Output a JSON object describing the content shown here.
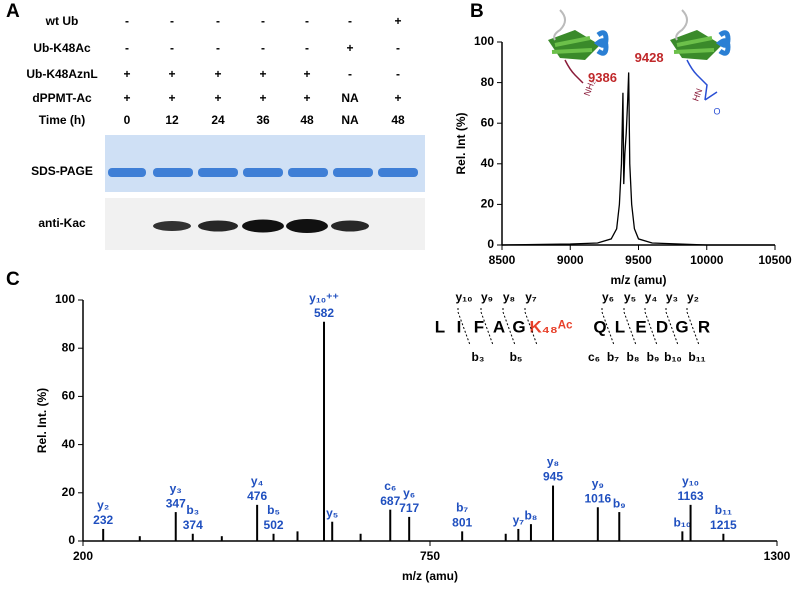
{
  "gel": {
    "panel": "A",
    "rows": [
      {
        "label": "wt Ub",
        "cells": [
          "-",
          "-",
          "-",
          "-",
          "-",
          "-",
          "+"
        ]
      },
      {
        "label": "Ub-K48Ac",
        "cells": [
          "-",
          "-",
          "-",
          "-",
          "-",
          "+",
          "-"
        ]
      },
      {
        "label": "Ub-K48AznL",
        "cells": [
          "+",
          "+",
          "+",
          "+",
          "+",
          "-",
          "-"
        ]
      },
      {
        "label": "dPPMT-Ac",
        "cells": [
          "+",
          "+",
          "+",
          "+",
          "+",
          "NA",
          "+"
        ]
      },
      {
        "label": "Time (h)",
        "cells": [
          0,
          12,
          24,
          36,
          48,
          "NA",
          48
        ]
      }
    ],
    "blots": [
      "SDS-PAGE",
      "anti-Kac"
    ]
  },
  "chart_data": [
    {
      "type": "line",
      "panel": "B",
      "xlabel": "m/z (amu)",
      "ylabel": "Rel. Int (%)",
      "x": [
        8500,
        8800,
        9000,
        9200,
        9300,
        9340,
        9360,
        9375,
        9386,
        9392,
        9400,
        9410,
        9420,
        9428,
        9436,
        9450,
        9470,
        9500,
        9600,
        9800,
        10000,
        10500
      ],
      "values": [
        0,
        0.3,
        0.5,
        1,
        3,
        8,
        20,
        40,
        75,
        30,
        45,
        55,
        70,
        85,
        40,
        20,
        8,
        3,
        1,
        0.5,
        0,
        0
      ],
      "color": "#000000",
      "xlim": [
        8500,
        10500
      ],
      "xticks": [
        8500,
        9000,
        9500,
        10000,
        10500
      ],
      "ylim": [
        0,
        100
      ],
      "yticks": [
        0,
        20,
        40,
        60,
        80,
        100
      ],
      "annotations": [
        9386,
        9428
      ],
      "annotation_color": "#c0282a",
      "cartoon_labels": [
        "NH₂",
        "HN",
        "O"
      ]
    },
    {
      "type": "stem",
      "panel": "C",
      "xlabel": "m/z (amu)",
      "ylabel": "Rel. Int. (%)",
      "x": [
        232,
        290,
        347,
        374,
        420,
        476,
        502,
        540,
        582,
        595,
        640,
        687,
        717,
        801,
        870,
        890,
        910,
        945,
        1016,
        1050,
        1150,
        1163,
        1215
      ],
      "values": [
        5,
        2,
        12,
        3,
        2,
        15,
        3,
        4,
        91,
        8,
        3,
        13,
        10,
        4,
        3,
        5,
        7,
        23,
        14,
        12,
        4,
        15,
        3
      ],
      "ion_labels": [
        "y₂",
        null,
        "y₃",
        "b₃",
        null,
        "y₄",
        "b₅",
        null,
        "y₁₀⁺⁺",
        "y₅",
        null,
        "c₆",
        "y₆",
        "b₇",
        null,
        "y₇",
        "b₈",
        "y₈",
        "y₉",
        "b₉",
        "b₁₀",
        "y₁₀",
        "b₁₁"
      ],
      "x_labels": [
        232,
        null,
        347,
        374,
        null,
        476,
        502,
        null,
        582,
        null,
        null,
        687,
        717,
        801,
        null,
        null,
        null,
        945,
        1016,
        null,
        null,
        1163,
        1215
      ],
      "color": "#000000",
      "label_color": "#1f4fbf",
      "xlim": [
        200,
        1300
      ],
      "xticks": [
        200,
        750,
        1300
      ],
      "ylim": [
        0,
        100
      ],
      "yticks": [
        0,
        20,
        40,
        60,
        80,
        100
      ],
      "sequence": [
        "L",
        "I",
        "F",
        "A",
        "G",
        "K₄₈ᴬᶜ",
        "Q",
        "L",
        "E",
        "D",
        "G",
        "R"
      ],
      "fragments_top": [
        "y₁₀",
        "y₉",
        "y₈",
        "y₇",
        "y₆",
        "y₅",
        "y₄",
        "y₃",
        "y₂"
      ],
      "fragments_bottom": [
        "b₃",
        "b₅",
        "c₆",
        "b₇",
        "b₈",
        "b₉",
        "b₁₀",
        "b₁₁"
      ]
    }
  ]
}
